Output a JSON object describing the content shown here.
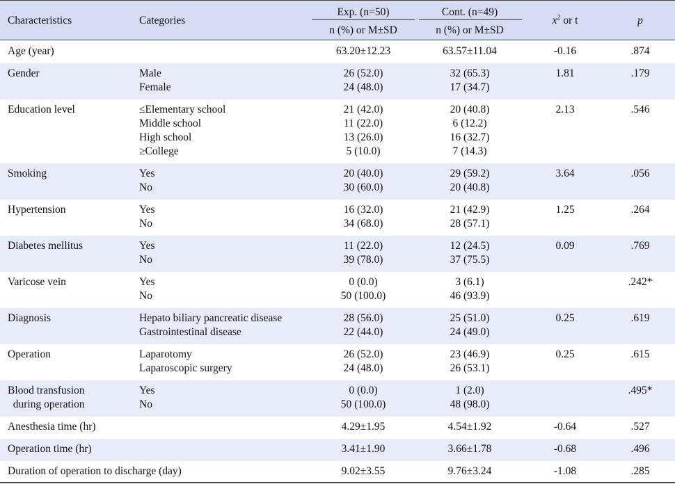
{
  "header": {
    "characteristics": "Characteristics",
    "categories": "Categories",
    "exp_group": "Exp. (n=50)",
    "cont_group": "Cont. (n=49)",
    "exp_sub": "n (%) or M±SD",
    "cont_sub": "n (%) or M±SD",
    "stat_x": "x",
    "stat_sup": "2",
    "stat_rest": " or t",
    "p": "p"
  },
  "rows": [
    {
      "char": [
        "Age (year)"
      ],
      "cats": [],
      "exp": [
        "63.20±12.23"
      ],
      "cont": [
        "63.57±11.04"
      ],
      "stat": "-0.16",
      "p": ".874"
    },
    {
      "char": [
        "Gender"
      ],
      "cats": [
        "Male",
        "Female"
      ],
      "exp": [
        "26 (52.0)",
        "24 (48.0)"
      ],
      "cont": [
        "32 (65.3)",
        "17 (34.7)"
      ],
      "stat": "1.81",
      "p": ".179"
    },
    {
      "char": [
        "Education level"
      ],
      "cats": [
        "≤Elementary school",
        "Middle school",
        "High school",
        "≥College"
      ],
      "exp": [
        "21 (42.0)",
        "11 (22.0)",
        "13 (26.0)",
        "5 (10.0)"
      ],
      "cont": [
        "20 (40.8)",
        "6 (12.2)",
        "16 (32.7)",
        "7 (14.3)"
      ],
      "stat": "2.13",
      "p": ".546"
    },
    {
      "char": [
        "Smoking"
      ],
      "cats": [
        "Yes",
        "No"
      ],
      "exp": [
        "20 (40.0)",
        "30 (60.0)"
      ],
      "cont": [
        "29 (59.2)",
        "20 (40.8)"
      ],
      "stat": "3.64",
      "p": ".056"
    },
    {
      "char": [
        "Hypertension"
      ],
      "cats": [
        "Yes",
        "No"
      ],
      "exp": [
        "16 (32.0)",
        "34 (68.0)"
      ],
      "cont": [
        "21 (42.9)",
        "28 (57.1)"
      ],
      "stat": "1.25",
      "p": ".264"
    },
    {
      "char": [
        "Diabetes mellitus"
      ],
      "cats": [
        "Yes",
        "No"
      ],
      "exp": [
        "11 (22.0)",
        "39 (78.0)"
      ],
      "cont": [
        "12 (24.5)",
        "37 (75.5)"
      ],
      "stat": "0.09",
      "p": ".769"
    },
    {
      "char": [
        "Varicose vein"
      ],
      "cats": [
        "Yes",
        "No"
      ],
      "exp": [
        "0 (0.0)",
        "50 (100.0)"
      ],
      "cont": [
        "3 (6.1)",
        "46 (93.9)"
      ],
      "stat": "",
      "p": ".242*"
    },
    {
      "char": [
        "Diagnosis"
      ],
      "cats": [
        "Hepato biliary pancreatic disease",
        "Gastrointestinal disease"
      ],
      "exp": [
        "28 (56.0)",
        "22 (44.0)"
      ],
      "cont": [
        "25 (51.0)",
        "24 (49.0)"
      ],
      "stat": "0.25",
      "p": ".619"
    },
    {
      "char": [
        "Operation"
      ],
      "cats": [
        "Laparotomy",
        "Laparoscopic surgery"
      ],
      "exp": [
        "26 (52.0)",
        "24 (48.0)"
      ],
      "cont": [
        "23 (46.9)",
        "26 (53.1)"
      ],
      "stat": "0.25",
      "p": ".615"
    },
    {
      "char": [
        "Blood transfusion",
        "  during operation"
      ],
      "cats": [
        "Yes",
        "No"
      ],
      "exp": [
        "0 (0.0)",
        "50 (100.0)"
      ],
      "cont": [
        "1 (2.0)",
        "48 (98.0)"
      ],
      "stat": "",
      "p": ".495*"
    },
    {
      "char": [
        "Anesthesia time (hr)"
      ],
      "cats": [],
      "exp": [
        "4.29±1.95"
      ],
      "cont": [
        "4.54±1.92"
      ],
      "stat": "-0.64",
      "p": ".527"
    },
    {
      "char": [
        "Operation time (hr)"
      ],
      "cats": [],
      "exp": [
        "3.41±1.90"
      ],
      "cont": [
        "3.66±1.78"
      ],
      "stat": "-0.68",
      "p": ".496"
    },
    {
      "char": [
        "Duration of operation to discharge (day)"
      ],
      "cats": [],
      "exp": [
        "9.02±3.55"
      ],
      "cont": [
        "9.76±3.24"
      ],
      "stat": "-1.08",
      "p": ".285"
    }
  ]
}
